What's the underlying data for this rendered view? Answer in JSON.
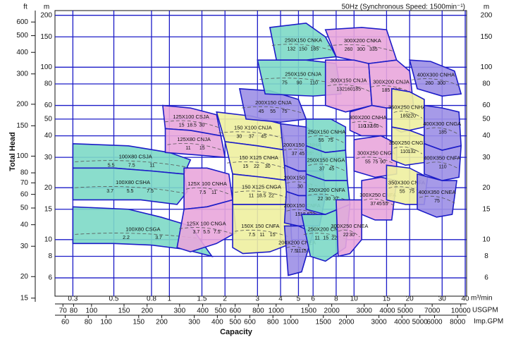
{
  "chart_data": {
    "type": "coverage",
    "title": "50Hz (Synchronous Speed: 1500min⁻¹)",
    "x_label": "Capacity",
    "y_label": "Total Head",
    "x_unit": "m³/min",
    "y_unit": "m",
    "log_x": true,
    "log_y": true,
    "grid": true,
    "xlim": [
      0.24,
      40.7
    ],
    "xticks": [
      0.3,
      0.5,
      0.8,
      1,
      1.5,
      2,
      3,
      4,
      5,
      6,
      8,
      10,
      15,
      20,
      30,
      40
    ],
    "ylim": [
      4.7,
      213
    ],
    "yticks": [
      200,
      150,
      100,
      80,
      60,
      50,
      40,
      30,
      20,
      15,
      10,
      8,
      6
    ],
    "ft": {
      "unit": "ft",
      "lim": [
        15.4,
        699
      ],
      "ticks": [
        600,
        500,
        400,
        300,
        200,
        150,
        100,
        80,
        70,
        60,
        50,
        40,
        30,
        20,
        15
      ]
    },
    "usgpm": {
      "unit": "USGPM",
      "lim": [
        63.4,
        10752
      ],
      "ticks": [
        70,
        80,
        100,
        150,
        200,
        300,
        400,
        500,
        600,
        800,
        1000,
        1500,
        2000,
        3000,
        4000,
        5000,
        7000,
        10000
      ]
    },
    "impgpm": {
      "unit": "Imp.GPM",
      "lim": [
        52.8,
        8953
      ],
      "ticks": [
        60,
        80,
        100,
        150,
        200,
        300,
        400,
        500,
        600,
        800,
        1000,
        1500,
        2000,
        3000,
        4000,
        5000,
        6000,
        8000
      ]
    },
    "regions": [
      {
        "name": "100X80 CSJA",
        "color": "#7dd9c6",
        "q": [
          0.3,
          0.6,
          1.0,
          1.3,
          1.2,
          0.8,
          0.5,
          0.3
        ],
        "head": [
          36,
          35,
          32,
          29,
          24,
          25,
          26,
          26
        ],
        "power": [
          5.5,
          7.5,
          11
        ]
      },
      {
        "name": "100X80 CSHA",
        "color": "#7dd9c6",
        "q": [
          0.3,
          0.5,
          0.8,
          1.2,
          1.25,
          1.1,
          0.7,
          0.4,
          0.3
        ],
        "head": [
          26,
          26,
          25,
          24,
          19,
          16,
          17,
          17,
          17
        ],
        "power": [
          3.7,
          5.5,
          7.5
        ]
      },
      {
        "name": "100X80 CSGA",
        "color": "#7dd9c6",
        "q": [
          0.3,
          0.6,
          0.9,
          1.3,
          1.7,
          1.2,
          0.8,
          0.5,
          0.3
        ],
        "head": [
          15.5,
          15,
          13.5,
          12,
          8,
          8.8,
          9.3,
          9.5,
          9.5
        ],
        "power": [
          2.2,
          3.7
        ]
      },
      {
        "name": "125X100 CSJA",
        "color": "#e9a6dc",
        "q": [
          0.92,
          1.3,
          1.8,
          1.9,
          1.3,
          0.95
        ],
        "head": [
          60,
          58,
          53,
          40,
          43,
          44
        ],
        "power": [
          15,
          18.5,
          30
        ]
      },
      {
        "name": "125X80 CNJA",
        "color": "#e9a6dc",
        "q": [
          0.95,
          1.3,
          1.9,
          2.0,
          1.4,
          0.95
        ],
        "head": [
          44,
          43,
          40,
          30,
          31,
          32
        ],
        "power": [
          11,
          15
        ]
      },
      {
        "name": "125X 100 CNHA",
        "color": "#e9a6dc",
        "q": [
          1.2,
          1.6,
          2.1,
          2.2,
          1.6,
          1.2
        ],
        "head": [
          26,
          26,
          24,
          17,
          15.5,
          15
        ],
        "power": [
          7.5,
          11
        ]
      },
      {
        "name": "125X 100 CNGA",
        "color": "#e9a6dc",
        "q": [
          1.2,
          1.6,
          2.2,
          2.3,
          1.8,
          1.3,
          1.1
        ],
        "head": [
          15,
          15.5,
          17,
          11,
          9.5,
          8.5,
          9
        ],
        "power": [
          3.7,
          5.5,
          7.5
        ]
      },
      {
        "name": "150 X100 CNJA",
        "color": "#eef0a0",
        "q": [
          1.8,
          2.8,
          4.0,
          4.3,
          3.0,
          2.0
        ],
        "head": [
          55,
          52,
          47,
          33,
          35,
          37
        ],
        "power": [
          30,
          37,
          45
        ]
      },
      {
        "name": "150 X125 CNHA",
        "color": "#eef0a0",
        "q": [
          2.0,
          3.0,
          4.3,
          4.4,
          3.2,
          2.2
        ],
        "head": [
          37,
          35,
          33,
          22,
          23,
          24
        ],
        "power": [
          15,
          22,
          30
        ]
      },
      {
        "name": "150 X125 CNGA",
        "color": "#eef0a0",
        "q": [
          2.2,
          3.2,
          4.4,
          4.5,
          3.2,
          2.2
        ],
        "head": [
          24,
          23,
          22,
          16,
          16,
          16
        ],
        "power": [
          11,
          18.5,
          22
        ]
      },
      {
        "name": "150X 150 CNFA",
        "color": "#eef0a0",
        "q": [
          2.2,
          3.2,
          4.5,
          4.6,
          3.5,
          2.5,
          2.2
        ],
        "head": [
          16,
          16,
          16,
          9.5,
          8.5,
          8.3,
          9
        ],
        "power": [
          7.5,
          11,
          15
        ]
      },
      {
        "name": "200X150 CNJA",
        "color": "#9c8fe6",
        "q": [
          2.4,
          3.5,
          5.0,
          5.5,
          4.0,
          2.6
        ],
        "head": [
          75,
          73,
          65,
          50,
          48,
          50
        ],
        "power": [
          45,
          55,
          75
        ]
      },
      {
        "name": "200X150 CNHA",
        "color": "#9c8fe6",
        "q": [
          4.0,
          5.5,
          6.5,
          6.8,
          5.0,
          4.2
        ],
        "head": [
          47,
          45,
          40,
          25,
          25,
          27
        ],
        "power": [
          37,
          45,
          55
        ]
      },
      {
        "name": "200X150 CNGA",
        "color": "#9c8fe6",
        "q": [
          4.2,
          5.0,
          6.8,
          7.0,
          5.0,
          4.3
        ],
        "head": [
          27,
          25,
          25,
          18,
          18,
          19
        ],
        "power": [
          30,
          37
        ]
      },
      {
        "name": "200X150 CNFA",
        "color": "#9c8fe6",
        "q": [
          4.3,
          5.0,
          7.0,
          6.5,
          5.0,
          4.2
        ],
        "head": [
          19,
          18,
          18,
          12,
          12,
          12.5
        ],
        "power": [
          15,
          18.5,
          22
        ]
      },
      {
        "name": "200X200 CNEA",
        "color": "#9c8fe6",
        "q": [
          4.2,
          5.0,
          6.0,
          5.2,
          4.4
        ],
        "head": [
          12,
          12,
          11,
          6.5,
          6.2
        ],
        "power": [
          7.5,
          11,
          15
        ]
      },
      {
        "name": "250X150 CNKA",
        "color": "#7dd9c6",
        "q": [
          3.5,
          5.5,
          7.0,
          8.0,
          5.5,
          3.8
        ],
        "head": [
          170,
          180,
          150,
          115,
          110,
          110
        ],
        "power": [
          132,
          150,
          185
        ]
      },
      {
        "name": "250X150 CNJA",
        "color": "#7dd9c6",
        "q": [
          3.0,
          5.5,
          8.0,
          8.5,
          6.0,
          3.3
        ],
        "head": [
          110,
          110,
          105,
          70,
          68,
          70
        ],
        "power": [
          75,
          90,
          110
        ]
      },
      {
        "name": "250X150 CNHA",
        "color": "#7dd9c6",
        "q": [
          5.5,
          7.5,
          9.0,
          9.0,
          7.0,
          5.5
        ],
        "head": [
          50,
          50,
          45,
          33,
          32,
          35
        ],
        "power": [
          55,
          75
        ]
      },
      {
        "name": "250X150 CNGA",
        "color": "#7dd9c6",
        "q": [
          5.5,
          7.0,
          9.0,
          9.2,
          7.0,
          5.5
        ],
        "head": [
          35,
          32,
          33,
          22,
          22,
          24
        ],
        "power": [
          37,
          45
        ]
      },
      {
        "name": "250X200 CNFA",
        "color": "#7dd9c6",
        "q": [
          5.5,
          7.0,
          9.2,
          9.5,
          7.0,
          5.5
        ],
        "head": [
          24,
          22,
          22,
          16,
          14,
          15
        ],
        "power": [
          22,
          30,
          37
        ]
      },
      {
        "name": "250X200 CNEA",
        "color": "#7dd9c6",
        "q": [
          5.2,
          7.0,
          9.5,
          9.0,
          7.0,
          5.8
        ],
        "head": [
          14,
          14,
          16,
          9,
          7.5,
          8
        ],
        "power": [
          11,
          15,
          22
        ]
      },
      {
        "name": "300X200 CNKA",
        "color": "#e9a6dc",
        "q": [
          7,
          11,
          15,
          17,
          12,
          8
        ],
        "head": [
          165,
          170,
          165,
          110,
          105,
          115
        ],
        "power": [
          260,
          300,
          335
        ]
      },
      {
        "name": "300X150 CNJA",
        "color": "#e9a6dc",
        "q": [
          7,
          10,
          12,
          12.5,
          9,
          7
        ],
        "head": [
          110,
          110,
          105,
          60,
          55,
          60
        ],
        "power": [
          132,
          160,
          185
        ]
      },
      {
        "name": "300X200 CNJA",
        "color": "#e9a6dc",
        "q": [
          12,
          17,
          20,
          21,
          15,
          12.5
        ],
        "head": [
          105,
          110,
          95,
          60,
          58,
          60
        ],
        "power": [
          185,
          220
        ]
      },
      {
        "name": "300X200 CNHA",
        "color": "#e9a6dc",
        "q": [
          9.5,
          12.5,
          15,
          15,
          11,
          9.5
        ],
        "head": [
          55,
          60,
          58,
          40,
          40,
          43
        ],
        "power": [
          110,
          132,
          160
        ]
      },
      {
        "name": "300X250 CNGA",
        "color": "#e9a6dc",
        "q": [
          10,
          14,
          17,
          17,
          13,
          10
        ],
        "head": [
          38,
          40,
          36,
          24,
          23,
          25
        ],
        "power": [
          55,
          75,
          90
        ]
      },
      {
        "name": "300X250 CNFA",
        "color": "#e9a6dc",
        "q": [
          11,
          14,
          17,
          16,
          13,
          11
        ],
        "head": [
          22,
          23,
          22,
          13,
          13,
          14
        ],
        "power": [
          37,
          45,
          55
        ]
      },
      {
        "name": "300X250 CNEA",
        "color": "#e9a6dc",
        "q": [
          8,
          11,
          11,
          9.5,
          8.2
        ],
        "head": [
          17,
          17,
          10,
          8.3,
          8
        ],
        "power": [
          22,
          30
        ]
      },
      {
        "name": "350X250 CNHA",
        "color": "#eef0a0",
        "q": [
          16,
          20,
          24,
          24,
          18,
          16
        ],
        "head": [
          75,
          72,
          65,
          45,
          42,
          45
        ],
        "power": [
          185,
          220
        ]
      },
      {
        "name": "350X250 CNGA",
        "color": "#eef0a0",
        "q": [
          16,
          20,
          24,
          24,
          19,
          16
        ],
        "head": [
          45,
          43,
          40,
          28,
          27,
          29
        ],
        "power": [
          110,
          132
        ]
      },
      {
        "name": "350X300 CNFA",
        "color": "#eef0a0",
        "q": [
          15,
          20,
          25,
          24,
          19,
          15
        ],
        "head": [
          27,
          26,
          23,
          16,
          16,
          17
        ],
        "power": [
          55,
          75
        ]
      },
      {
        "name": "400X300 CNHA",
        "color": "#9c8fe6",
        "q": [
          20,
          26,
          35,
          38,
          30,
          22
        ],
        "head": [
          110,
          108,
          95,
          70,
          68,
          75
        ],
        "power": [
          260,
          300
        ]
      },
      {
        "name": "400X300 CNGA",
        "color": "#9c8fe6",
        "q": [
          24,
          30,
          37,
          38,
          30,
          24
        ],
        "head": [
          60,
          58,
          55,
          35,
          33,
          36
        ],
        "power": [
          185
        ]
      },
      {
        "name": "400X350 CNFA",
        "color": "#9c8fe6",
        "q": [
          24,
          30,
          38,
          37,
          30,
          24
        ],
        "head": [
          36,
          33,
          35,
          23,
          22,
          24
        ],
        "power": [
          110
        ]
      },
      {
        "name": "400X350 CNEA",
        "color": "#9c8fe6",
        "q": [
          22,
          30,
          36,
          34,
          28,
          22
        ],
        "head": [
          24,
          22,
          22,
          14,
          13.5,
          15
        ],
        "power": [
          75
        ]
      }
    ]
  }
}
